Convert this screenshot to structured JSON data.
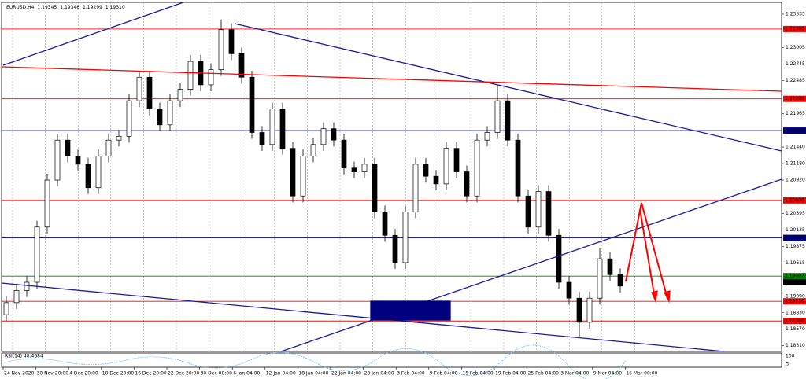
{
  "chart_data": {
    "type": "candlestick",
    "symbol": "EURUSD,H4",
    "header_ohlc": [
      1.19345,
      1.19346,
      1.19299,
      {
        "value": 1.1931,
        "label": "1.19310"
      }
    ],
    "indicator": "RSI(14) 48.4684",
    "indicator_ticks": [
      "100",
      "0"
    ],
    "categories": [
      "24 Nov 2020",
      "30 Nov 20:00",
      "4 Dec 20:00",
      "10 Dec 20:00",
      "16 Dec 20:00",
      "22 Dec 20:00",
      "30 Dec 00:00",
      "6 Jan 04:00",
      "12 Jan 04:00",
      "18 Jan 04:00",
      "22 Jan 04:00",
      "28 Jan 04:00",
      "3 Feb 04:00",
      "9 Feb 04:00",
      "15 Feb 04:00",
      "19 Feb 04:00",
      "25 Feb 04:00",
      "3 Mar 04:00",
      "9 Mar 04:00",
      "15 Mar 00:00"
    ],
    "ylim": [
      1.1822,
      1.2372
    ],
    "yticks": [
      1.23535,
      1.23005,
      1.22745,
      1.22485,
      1.21965,
      {
        "value": 1.2144,
        "label": "1.21440"
      },
      {
        "value": 1.2118,
        "label": "1.21180"
      },
      {
        "value": 1.2092,
        "label": "1.20920"
      },
      1.20395,
      1.20135,
      1.19875,
      1.19615,
      {
        "value": 1.1909,
        "label": "1.19090"
      },
      {
        "value": 1.1883,
        "label": "1.18830"
      },
      {
        "value": 1.1857,
        "label": "1.18570"
      },
      {
        "value": 1.1831,
        "label": "1.18310"
      }
    ],
    "grid": true,
    "levels": [
      {
        "value": 1.233,
        "label": "1.23300",
        "color": "#ff0000"
      },
      {
        "value": 1.222,
        "label": "1.22200",
        "color": "#ff0000"
      },
      {
        "value": 1.217,
        "label": "1.21700",
        "color": "#000080"
      },
      {
        "value": 1.206,
        "label": "1.20600",
        "color": "#ff0000"
      },
      {
        "value": 1.20009,
        "label": "1.20009",
        "color": "#000080"
      },
      {
        "value": 1.19407,
        "label": "1.19407",
        "color": "#008000"
      },
      {
        "value": 1.1901,
        "label": "1.19010",
        "color": "#ff0000"
      },
      {
        "value": 1.187,
        "label": "1.18700",
        "color": "#ff0000"
      }
    ],
    "candles": [
      [
        1.188,
        1.1909,
        1.187,
        1.1899
      ],
      [
        1.1899,
        1.1928,
        1.1889,
        1.1918
      ],
      [
        1.1918,
        1.1941,
        1.1908,
        1.1931
      ],
      [
        1.1931,
        1.2028,
        1.1921,
        1.2018
      ],
      [
        1.2018,
        1.2102,
        1.2008,
        1.2092
      ],
      [
        1.2092,
        1.2165,
        1.2082,
        1.2155
      ],
      [
        1.2155,
        1.2165,
        1.212,
        1.213
      ],
      [
        1.213,
        1.214,
        1.2107,
        1.2117
      ],
      [
        1.2117,
        1.2127,
        1.207,
        1.208
      ],
      [
        1.208,
        1.214,
        1.207,
        1.213
      ],
      [
        1.213,
        1.2165,
        1.212,
        1.2155
      ],
      [
        1.2155,
        1.2171,
        1.2145,
        1.2161
      ],
      [
        1.2161,
        1.2227,
        1.2151,
        1.2217
      ],
      [
        1.2217,
        1.2264,
        1.2207,
        1.2254
      ],
      [
        1.2254,
        1.2264,
        1.2194,
        1.2204
      ],
      [
        1.2204,
        1.2214,
        1.2169,
        1.2179
      ],
      [
        1.2179,
        1.2227,
        1.2169,
        1.2217
      ],
      [
        1.2217,
        1.2245,
        1.2207,
        1.2235
      ],
      [
        1.2235,
        1.2289,
        1.2225,
        1.2279
      ],
      [
        1.2279,
        1.2289,
        1.2232,
        1.2242
      ],
      [
        1.2242,
        1.2276,
        1.2232,
        1.2266
      ],
      [
        1.2266,
        1.2345,
        1.2256,
        1.2329
      ],
      [
        1.2329,
        1.2339,
        1.2281,
        1.2291
      ],
      [
        1.2291,
        1.2301,
        1.2244,
        1.2254
      ],
      [
        1.2254,
        1.2264,
        1.2157,
        1.2167
      ],
      [
        1.2167,
        1.2177,
        1.2138,
        1.2148
      ],
      [
        1.2148,
        1.2214,
        1.2138,
        1.2204
      ],
      [
        1.2204,
        1.2214,
        1.2132,
        1.2142
      ],
      [
        1.2142,
        1.2152,
        1.2057,
        1.2067
      ],
      [
        1.2067,
        1.214,
        1.2057,
        1.213
      ],
      [
        1.213,
        1.2158,
        1.212,
        1.2148
      ],
      [
        1.2148,
        1.2183,
        1.2138,
        1.2173
      ],
      [
        1.2173,
        1.2183,
        1.2145,
        1.2155
      ],
      [
        1.2155,
        1.2165,
        1.2101,
        1.2111
      ],
      [
        1.2111,
        1.2121,
        1.2095,
        1.2105
      ],
      [
        1.2105,
        1.2127,
        1.2095,
        1.2117
      ],
      [
        1.2117,
        1.2127,
        1.2032,
        1.2042
      ],
      [
        1.2042,
        1.2052,
        1.1995,
        1.2005
      ],
      [
        1.2005,
        1.2015,
        1.1952,
        1.1962
      ],
      [
        1.1962,
        1.2052,
        1.1952,
        1.2042
      ],
      [
        1.2042,
        1.2127,
        1.2032,
        1.2117
      ],
      [
        1.2117,
        1.2127,
        1.2088,
        1.2098
      ],
      [
        1.2098,
        1.2108,
        1.2076,
        1.2086
      ],
      [
        1.2086,
        1.2152,
        1.2076,
        1.2142
      ],
      [
        1.2142,
        1.2152,
        1.2095,
        1.2105
      ],
      [
        1.2105,
        1.2115,
        1.2057,
        1.2067
      ],
      [
        1.2067,
        1.2165,
        1.2057,
        1.2155
      ],
      [
        1.2155,
        1.2177,
        1.2145,
        1.2167
      ],
      [
        1.2167,
        1.2242,
        1.2157,
        1.2217
      ],
      [
        1.2217,
        1.2227,
        1.2145,
        1.2155
      ],
      [
        1.2155,
        1.2165,
        1.2057,
        1.2067
      ],
      [
        1.2067,
        1.2077,
        1.2008,
        1.2018
      ],
      [
        1.2018,
        1.2084,
        1.2008,
        1.2074
      ],
      [
        1.2074,
        1.2084,
        1.1995,
        1.2005
      ],
      [
        1.2005,
        1.2015,
        1.1921,
        1.1931
      ],
      [
        1.1931,
        1.1941,
        1.1896,
        1.1906
      ],
      [
        1.1906,
        1.1916,
        1.1845,
        1.1868
      ],
      [
        1.1868,
        1.1916,
        1.1858,
        1.1906
      ],
      [
        1.1906,
        1.1985,
        1.1896,
        1.1968
      ],
      [
        1.1968,
        1.1978,
        1.1933,
        1.1943
      ],
      [
        1.1943,
        1.1953,
        1.1915,
        1.1925
      ]
    ]
  }
}
